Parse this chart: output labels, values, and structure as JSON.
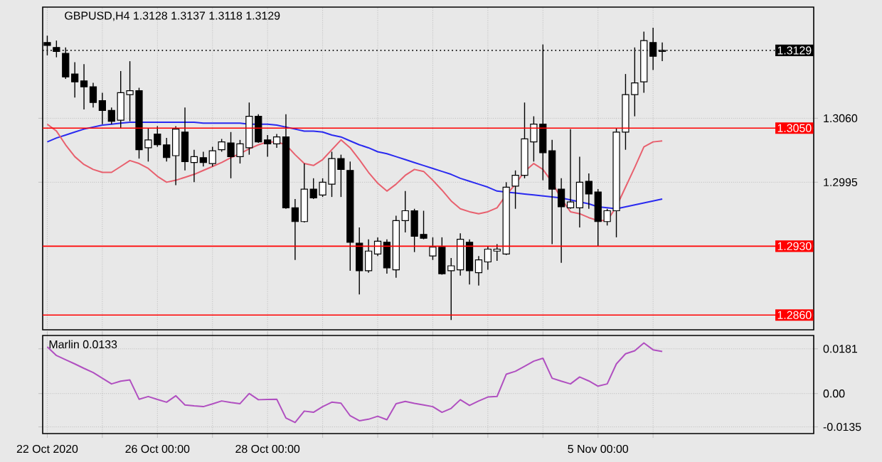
{
  "chart_data": [
    {
      "type": "candlestick",
      "title": "GBPUSD,H4  1.3128 1.3137 1.3118 1.3129",
      "color": "#000000",
      "categories": [
        null,
        null,
        null,
        null,
        null,
        null,
        null,
        null,
        null,
        null,
        null,
        null,
        null,
        null,
        null,
        null,
        null,
        null,
        null,
        null,
        null,
        null,
        null,
        null,
        null,
        null,
        null,
        null,
        null,
        null,
        null,
        null,
        null,
        null,
        null,
        null,
        null,
        null,
        null,
        null,
        null,
        null,
        null,
        null,
        null,
        null,
        null,
        null,
        null,
        null,
        null,
        null,
        null,
        null,
        null,
        null,
        null,
        null,
        null,
        null,
        null,
        null,
        null,
        null,
        null,
        null,
        null,
        null
      ],
      "ohlc": [
        [
          1.3137,
          1.3144,
          1.3124,
          1.3134
        ],
        [
          1.3132,
          1.3139,
          1.3122,
          1.3128
        ],
        [
          1.3126,
          1.3132,
          1.31,
          1.3102
        ],
        [
          1.3105,
          1.3117,
          1.3081,
          1.3097
        ],
        [
          1.3098,
          1.3115,
          1.3069,
          1.3092
        ],
        [
          1.3092,
          1.3096,
          1.3071,
          1.3076
        ],
        [
          1.3078,
          1.3086,
          1.3054,
          1.3068
        ],
        [
          1.3068,
          1.3071,
          1.3054,
          1.3057
        ],
        [
          1.3058,
          1.3108,
          1.305,
          1.3086
        ],
        [
          1.3084,
          1.3118,
          1.3057,
          1.3088
        ],
        [
          1.3088,
          1.3091,
          1.3019,
          1.3028
        ],
        [
          1.303,
          1.305,
          1.3016,
          1.3038
        ],
        [
          1.3044,
          1.3052,
          1.3031,
          1.3033
        ],
        [
          1.3033,
          1.304,
          1.3016,
          1.302
        ],
        [
          1.3022,
          1.3052,
          1.2992,
          1.3049
        ],
        [
          1.3046,
          1.3071,
          1.3007,
          1.3016
        ],
        [
          1.3015,
          1.3028,
          1.2995,
          1.3021
        ],
        [
          1.302,
          1.3026,
          1.3011,
          1.3015
        ],
        [
          1.3014,
          1.3031,
          1.3011,
          1.3027
        ],
        [
          1.3028,
          1.3039,
          1.3026,
          1.3036
        ],
        [
          1.3035,
          1.3046,
          1.2999,
          1.3021
        ],
        [
          1.3021,
          1.3038,
          1.3014,
          1.3034
        ],
        [
          1.303,
          1.3076,
          1.3023,
          1.3062
        ],
        [
          1.3062,
          1.3064,
          1.3035,
          1.3036
        ],
        [
          1.3038,
          1.3043,
          1.3021,
          1.3034
        ],
        [
          1.3034,
          1.3044,
          1.303,
          1.3041
        ],
        [
          1.3041,
          1.3064,
          1.2968,
          1.2969
        ],
        [
          1.2969,
          1.2978,
          1.2916,
          1.2955
        ],
        [
          1.2955,
          1.3014,
          1.2954,
          1.2988
        ],
        [
          1.2988,
          1.2999,
          1.2978,
          1.2979
        ],
        [
          1.2982,
          1.2999,
          1.298,
          1.2995
        ],
        [
          1.2993,
          1.3026,
          1.298,
          1.3019
        ],
        [
          1.3019,
          1.3023,
          1.298,
          1.3008
        ],
        [
          1.3007,
          1.3016,
          1.2905,
          1.2934
        ],
        [
          1.2933,
          1.2949,
          1.2881,
          1.2905
        ],
        [
          1.2905,
          1.2937,
          1.2903,
          1.2925
        ],
        [
          1.2922,
          1.2939,
          1.292,
          1.2935
        ],
        [
          1.2934,
          1.2937,
          1.2902,
          1.2908
        ],
        [
          1.2906,
          1.2961,
          1.2898,
          1.2956
        ],
        [
          1.2956,
          1.2986,
          1.2944,
          1.2966
        ],
        [
          1.2966,
          1.2968,
          1.2924,
          1.294
        ],
        [
          1.2942,
          1.2966,
          1.2937,
          1.2938
        ],
        [
          1.292,
          1.2939,
          1.2916,
          1.2929
        ],
        [
          1.2929,
          1.2939,
          1.2901,
          1.2902
        ],
        [
          1.2905,
          1.2918,
          1.2855,
          1.291
        ],
        [
          1.2906,
          1.2943,
          1.29,
          1.2937
        ],
        [
          1.2934,
          1.2937,
          1.2891,
          1.2905
        ],
        [
          1.2903,
          1.292,
          1.289,
          1.2916
        ],
        [
          1.2914,
          1.293,
          1.2906,
          1.2927
        ],
        [
          1.2925,
          1.2932,
          1.2915,
          1.2927
        ],
        [
          1.2922,
          1.2995,
          1.2921,
          1.299
        ],
        [
          1.2991,
          1.3007,
          1.2968,
          1.3002
        ],
        [
          1.3002,
          1.3076,
          1.2999,
          1.3039
        ],
        [
          1.3036,
          1.3062,
          1.3016,
          1.3054
        ],
        [
          1.3054,
          1.3135,
          1.2997,
          1.3025
        ],
        [
          1.3027,
          1.3038,
          1.2932,
          1.2988
        ],
        [
          1.2988,
          1.2999,
          1.2913,
          1.297
        ],
        [
          1.2969,
          1.3049,
          1.2968,
          1.2975
        ],
        [
          1.2969,
          1.3021,
          1.2949,
          1.2995
        ],
        [
          1.2996,
          1.3004,
          1.2968,
          1.2983
        ],
        [
          1.2985,
          1.2988,
          1.293,
          1.2955
        ],
        [
          1.2955,
          1.2968,
          1.2951,
          1.2966
        ],
        [
          1.2966,
          1.305,
          1.2939,
          1.3046
        ],
        [
          1.3046,
          1.3105,
          1.3028,
          1.3084
        ],
        [
          1.3084,
          1.3132,
          1.3062,
          1.3096
        ],
        [
          1.3097,
          1.3148,
          1.3086,
          1.3139
        ],
        [
          1.3137,
          1.3152,
          1.3109,
          1.3123
        ],
        [
          1.3128,
          1.3137,
          1.3118,
          1.3129
        ]
      ],
      "series": [
        {
          "type": "line",
          "color": "#2a2af0",
          "values": [
            1.3036,
            1.304,
            1.3043,
            1.3046,
            1.3049,
            1.3051,
            1.3053,
            1.3054,
            1.3055,
            1.3056,
            1.3056,
            1.3056,
            1.3056,
            1.3056,
            1.3056,
            1.3056,
            1.3056,
            1.3055,
            1.3055,
            1.3055,
            1.3055,
            1.3055,
            1.3054,
            1.3054,
            1.3054,
            1.3053,
            1.3051,
            1.3049,
            1.3047,
            1.3047,
            1.3046,
            1.3043,
            1.3041,
            1.3037,
            1.3033,
            1.303,
            1.3026,
            1.3024,
            1.3021,
            1.3018,
            1.3015,
            1.3012,
            1.3009,
            1.3006,
            1.3003,
            1.2999,
            1.2996,
            1.2993,
            1.299,
            1.2986,
            1.2985,
            1.2984,
            1.2983,
            1.2982,
            1.2981,
            1.298,
            1.2979,
            1.2977,
            1.2975,
            1.2973,
            1.297,
            1.2969,
            1.2968,
            1.297,
            1.2972,
            1.2974,
            1.2976,
            1.2978
          ]
        },
        {
          "type": "line",
          "color": "#e8606e",
          "values": [
            1.3054,
            1.3047,
            1.3033,
            1.3021,
            1.3013,
            1.3008,
            1.3005,
            1.3005,
            1.3011,
            1.3017,
            1.3014,
            1.3009,
            1.3001,
            1.2995,
            1.2997,
            1.3,
            1.3003,
            1.3007,
            1.3011,
            1.3015,
            1.302,
            1.3024,
            1.3029,
            1.3033,
            1.3036,
            1.3036,
            1.3033,
            1.3023,
            1.3014,
            1.3012,
            1.3018,
            1.3028,
            1.3038,
            1.303,
            1.3018,
            1.3005,
            1.2994,
            1.2986,
            1.2993,
            1.3002,
            1.3008,
            1.3006,
            1.2997,
            1.2987,
            1.2976,
            1.2968,
            1.2965,
            1.2963,
            1.2965,
            1.2969,
            1.2982,
            1.2993,
            1.3006,
            1.3014,
            1.3008,
            1.2995,
            1.2978,
            1.2965,
            1.2963,
            1.2959,
            1.2956,
            1.2956,
            1.297,
            1.299,
            1.301,
            1.3031,
            1.3036,
            1.3037
          ]
        }
      ],
      "ylim": [
        1.2845,
        1.3173
      ],
      "yticks": [
        {
          "value": 1.306,
          "label": "1.3060"
        },
        1.2995
      ],
      "ref_lines": [
        {
          "axis": "y",
          "value": 1.3129,
          "label": "1.3129",
          "color": "#000000",
          "line_style": "dotted"
        },
        {
          "axis": "y",
          "value": 1.305,
          "label": "1.3050",
          "color": "#ff0000"
        },
        {
          "axis": "y",
          "value": 1.293,
          "label": "1.2930",
          "color": "#ff0000"
        },
        {
          "axis": "y",
          "value": 1.286,
          "label": "1.2860",
          "color": "#ff0000"
        }
      ],
      "grid": true,
      "tick_labels": "y"
    },
    {
      "type": "line",
      "title": "Marlin 0.0133",
      "color": "#b04fc0",
      "categories": [
        "22 Oct 2020",
        null,
        null,
        null,
        null,
        null,
        null,
        null,
        null,
        null,
        null,
        null,
        "26 Oct 00:00",
        null,
        null,
        null,
        null,
        null,
        null,
        null,
        null,
        null,
        null,
        null,
        "28 Oct 00:00",
        null,
        null,
        null,
        null,
        null,
        null,
        null,
        null,
        null,
        null,
        null,
        null,
        null,
        null,
        null,
        null,
        null,
        null,
        null,
        null,
        null,
        null,
        null,
        null,
        null,
        null,
        null,
        null,
        null,
        null,
        null,
        null,
        null,
        null,
        null,
        "5 Nov 00:00",
        null,
        null,
        null,
        null,
        null,
        null,
        null
      ],
      "values": [
        0.0189,
        0.0154,
        0.0137,
        0.012,
        0.0102,
        0.0085,
        0.0062,
        0.0039,
        0.005,
        0.0055,
        -0.0023,
        -0.0012,
        -0.0024,
        -0.0035,
        -0.0009,
        -0.0046,
        -0.005,
        -0.0053,
        -0.0042,
        -0.003,
        -0.0036,
        -0.0041,
        0.0,
        -0.0025,
        -0.0024,
        -0.0023,
        -0.0099,
        -0.0117,
        -0.0071,
        -0.0076,
        -0.0053,
        -0.0035,
        -0.0039,
        -0.009,
        -0.011,
        -0.0104,
        -0.0092,
        -0.0106,
        -0.0041,
        -0.0032,
        -0.004,
        -0.0046,
        -0.0053,
        -0.0076,
        -0.006,
        -0.0025,
        -0.0048,
        -0.003,
        -0.0014,
        -0.0012,
        0.0078,
        0.009,
        0.011,
        0.0131,
        0.0143,
        0.0062,
        0.005,
        0.0039,
        0.0067,
        0.0051,
        0.003,
        0.0039,
        0.012,
        0.0161,
        0.0173,
        0.0205,
        0.0177,
        0.017
      ],
      "ylim": [
        -0.0162,
        0.0235
      ],
      "yticks": [
        0.0181,
        {
          "value": 0,
          "label": "0.00"
        },
        -0.0135
      ],
      "grid": true
    }
  ]
}
